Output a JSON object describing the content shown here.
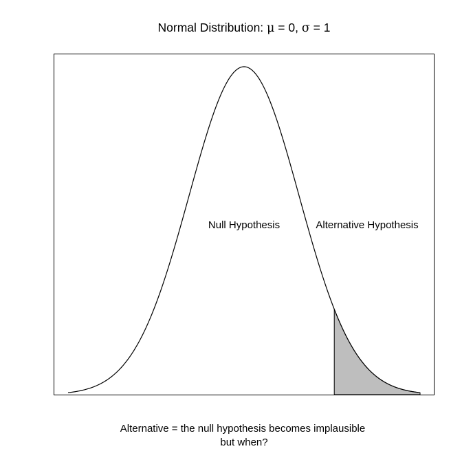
{
  "chart_data": {
    "type": "area",
    "title_prefix": "Normal Distribution: ",
    "title_mu": "μ",
    "title_mid": " = 0, ",
    "title_sigma": "σ",
    "title_suffix": " = 1",
    "mu": 0,
    "sigma": 1,
    "xlim": [
      -3.2,
      3.2
    ],
    "shaded_region": {
      "from": 1.64,
      "to": 3.2
    },
    "annotations": [
      {
        "id": "null",
        "text": "Null Hypothesis"
      },
      {
        "id": "alt",
        "text": "Alternative Hypothesis"
      }
    ],
    "caption_line1": "Alternative = the null hypothesis becomes implausible",
    "caption_line2": "but when?",
    "colors": {
      "curve": "#000000",
      "shade": "#bebebe",
      "frame": "#000000",
      "background": "#ffffff"
    },
    "grid": false,
    "axes_shown": false
  }
}
